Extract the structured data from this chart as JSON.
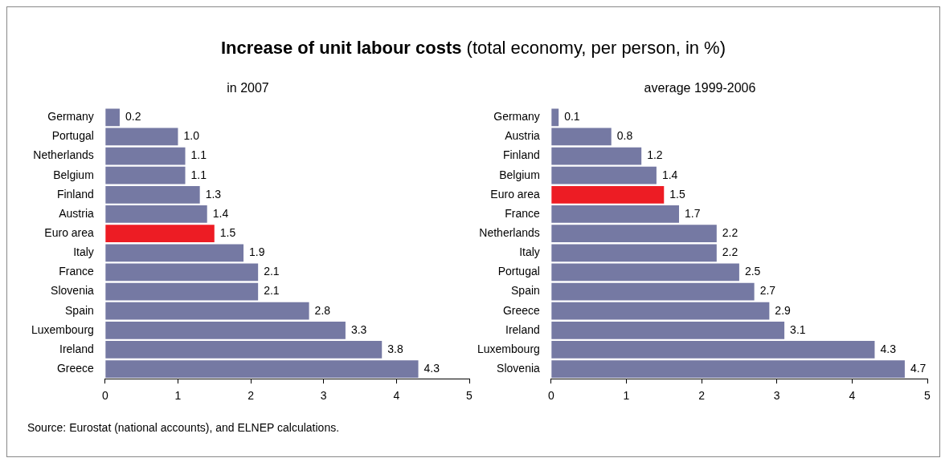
{
  "chart_data": [
    {
      "type": "bar",
      "orientation": "horizontal",
      "title": "in 2007",
      "categories": [
        "Germany",
        "Portugal",
        "Netherlands",
        "Belgium",
        "Finland",
        "Austria",
        "Euro area",
        "Italy",
        "France",
        "Slovenia",
        "Spain",
        "Luxembourg",
        "Ireland",
        "Greece"
      ],
      "values": [
        0.2,
        1.0,
        1.1,
        1.1,
        1.3,
        1.4,
        1.5,
        1.9,
        2.1,
        2.1,
        2.8,
        3.3,
        3.8,
        4.3
      ],
      "value_labels": [
        "0.2",
        "1.0",
        "1.1",
        "1.1",
        "1.3",
        "1.4",
        "1.5",
        "1.9",
        "2.1",
        "2.1",
        "2.8",
        "3.3",
        "3.8",
        "4.3"
      ],
      "colors": [
        "#7579a3",
        "#7579a3",
        "#7579a3",
        "#7579a3",
        "#7579a3",
        "#7579a3",
        "#ed1c24",
        "#7579a3",
        "#7579a3",
        "#7579a3",
        "#7579a3",
        "#7579a3",
        "#7579a3",
        "#7579a3"
      ],
      "xlim": [
        0,
        5
      ],
      "xticks": [
        0,
        1,
        2,
        3,
        4,
        5
      ],
      "annotations": [
        "Increase of unit labour costs",
        "(total economy, per person, in %)",
        "Source: Eurostat (national accounts), and ELNEP calculations."
      ]
    },
    {
      "type": "bar",
      "orientation": "horizontal",
      "title": "average 1999-2006",
      "categories": [
        "Germany",
        "Austria",
        "Finland",
        "Belgium",
        "Euro area",
        "France",
        "Netherlands",
        "Italy",
        "Portugal",
        "Spain",
        "Greece",
        "Ireland",
        "Luxembourg",
        "Slovenia"
      ],
      "values": [
        0.1,
        0.8,
        1.2,
        1.4,
        1.5,
        1.7,
        2.2,
        2.2,
        2.5,
        2.7,
        2.9,
        3.1,
        4.3,
        4.7
      ],
      "value_labels": [
        "0.1",
        "0.8",
        "1.2",
        "1.4",
        "1.5",
        "1.7",
        "2.2",
        "2.2",
        "2.5",
        "2.7",
        "2.9",
        "3.1",
        "4.3",
        "4.7"
      ],
      "colors": [
        "#7579a3",
        "#7579a3",
        "#7579a3",
        "#7579a3",
        "#ed1c24",
        "#7579a3",
        "#7579a3",
        "#7579a3",
        "#7579a3",
        "#7579a3",
        "#7579a3",
        "#7579a3",
        "#7579a3",
        "#7579a3"
      ],
      "xlim": [
        0,
        5
      ],
      "xticks": [
        0,
        1,
        2,
        3,
        4,
        5
      ]
    }
  ]
}
